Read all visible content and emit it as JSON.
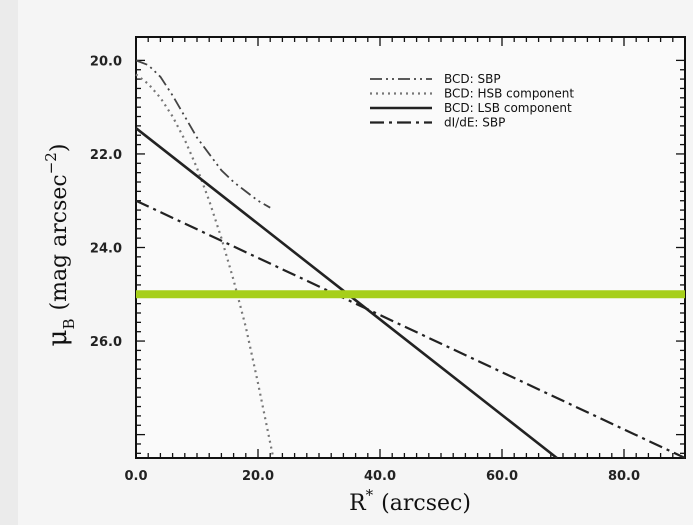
{
  "chart_data": {
    "type": "line",
    "xlabel": "R* (arcsec)",
    "xlabel_main": "R",
    "xlabel_sup": "*",
    "xlabel_unit": "(arcsec)",
    "ylabel_mu": "μ",
    "ylabel_sub": "B",
    "ylabel_unit": "(mag arcsec",
    "ylabel_exp": "−2",
    "ylabel_close": ")",
    "xlim": [
      0,
      90
    ],
    "ylim": [
      28.5,
      19.5
    ],
    "y_inverted": true,
    "x_ticks": [
      0,
      20,
      40,
      60,
      80
    ],
    "x_tick_labels": [
      "0.0",
      "20.0",
      "40.0",
      "60.0",
      "80.0"
    ],
    "y_ticks": [
      20,
      22,
      24,
      26
    ],
    "y_tick_labels": [
      "20.0",
      "22.0",
      "24.0",
      "26.0"
    ],
    "legend_position": "top-right",
    "series": [
      {
        "name": "BCD: SBP",
        "style": "dash-dot-dot",
        "x": [
          0,
          2,
          4,
          6,
          8,
          10,
          12,
          14,
          16,
          18,
          20,
          22
        ],
        "y": [
          20.0,
          20.1,
          20.35,
          20.75,
          21.2,
          21.65,
          22.0,
          22.35,
          22.6,
          22.8,
          23.0,
          23.15
        ]
      },
      {
        "name": "BCD: HSB component",
        "style": "dotted",
        "x": [
          0,
          2,
          4,
          6,
          8,
          10,
          12,
          14,
          16,
          18,
          20,
          22.5
        ],
        "y": [
          20.3,
          20.5,
          20.8,
          21.2,
          21.7,
          22.3,
          23.0,
          23.8,
          24.7,
          25.7,
          26.9,
          28.5
        ]
      },
      {
        "name": "BCD: LSB component",
        "style": "solid",
        "x": [
          0,
          69
        ],
        "y": [
          21.45,
          28.5
        ]
      },
      {
        "name": "dI/dE: SBP",
        "style": "dash-dot",
        "x": [
          0,
          90
        ],
        "y": [
          23.0,
          28.5
        ]
      }
    ],
    "highlight_line": {
      "y": 25.0,
      "color": "#a6cf1a"
    }
  }
}
